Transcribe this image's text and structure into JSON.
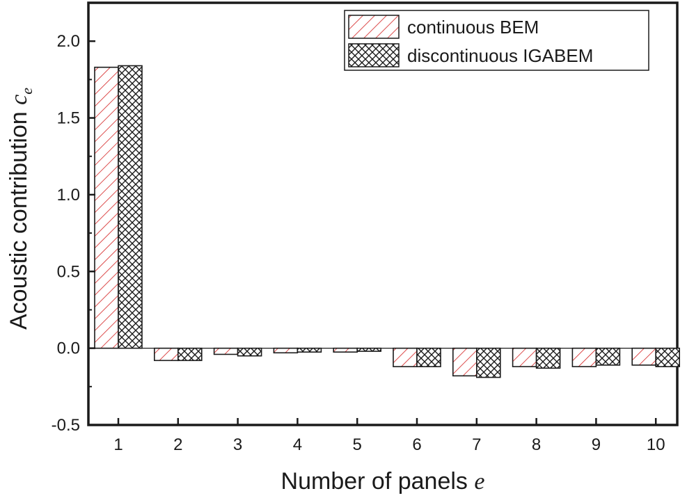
{
  "chart_data": {
    "type": "bar",
    "categories": [
      "1",
      "2",
      "3",
      "4",
      "5",
      "6",
      "7",
      "8",
      "9",
      "10"
    ],
    "series": [
      {
        "name": "continuous BEM",
        "values": [
          1.83,
          -0.08,
          -0.04,
          -0.03,
          -0.025,
          -0.12,
          -0.18,
          -0.12,
          -0.12,
          -0.11
        ],
        "pattern": "diagonal-hatch",
        "color": "#d42020"
      },
      {
        "name": "discontinuous IGABEM",
        "values": [
          1.84,
          -0.08,
          -0.05,
          -0.025,
          -0.02,
          -0.12,
          -0.19,
          -0.13,
          -0.11,
          -0.12
        ],
        "pattern": "cross-hatch",
        "color": "#1a1a1a"
      }
    ],
    "xlabel": {
      "text": "Number of panels ",
      "symbol": "e"
    },
    "ylabel": {
      "text": "Acoustic contribution ",
      "symbol": "c",
      "subscript": "e"
    },
    "ylim": [
      -0.5,
      2.25
    ],
    "yticks": [
      "-0.5",
      "0.0",
      "0.5",
      "1.0",
      "1.5",
      "2.0"
    ],
    "grid": false,
    "legend": "top-right"
  }
}
